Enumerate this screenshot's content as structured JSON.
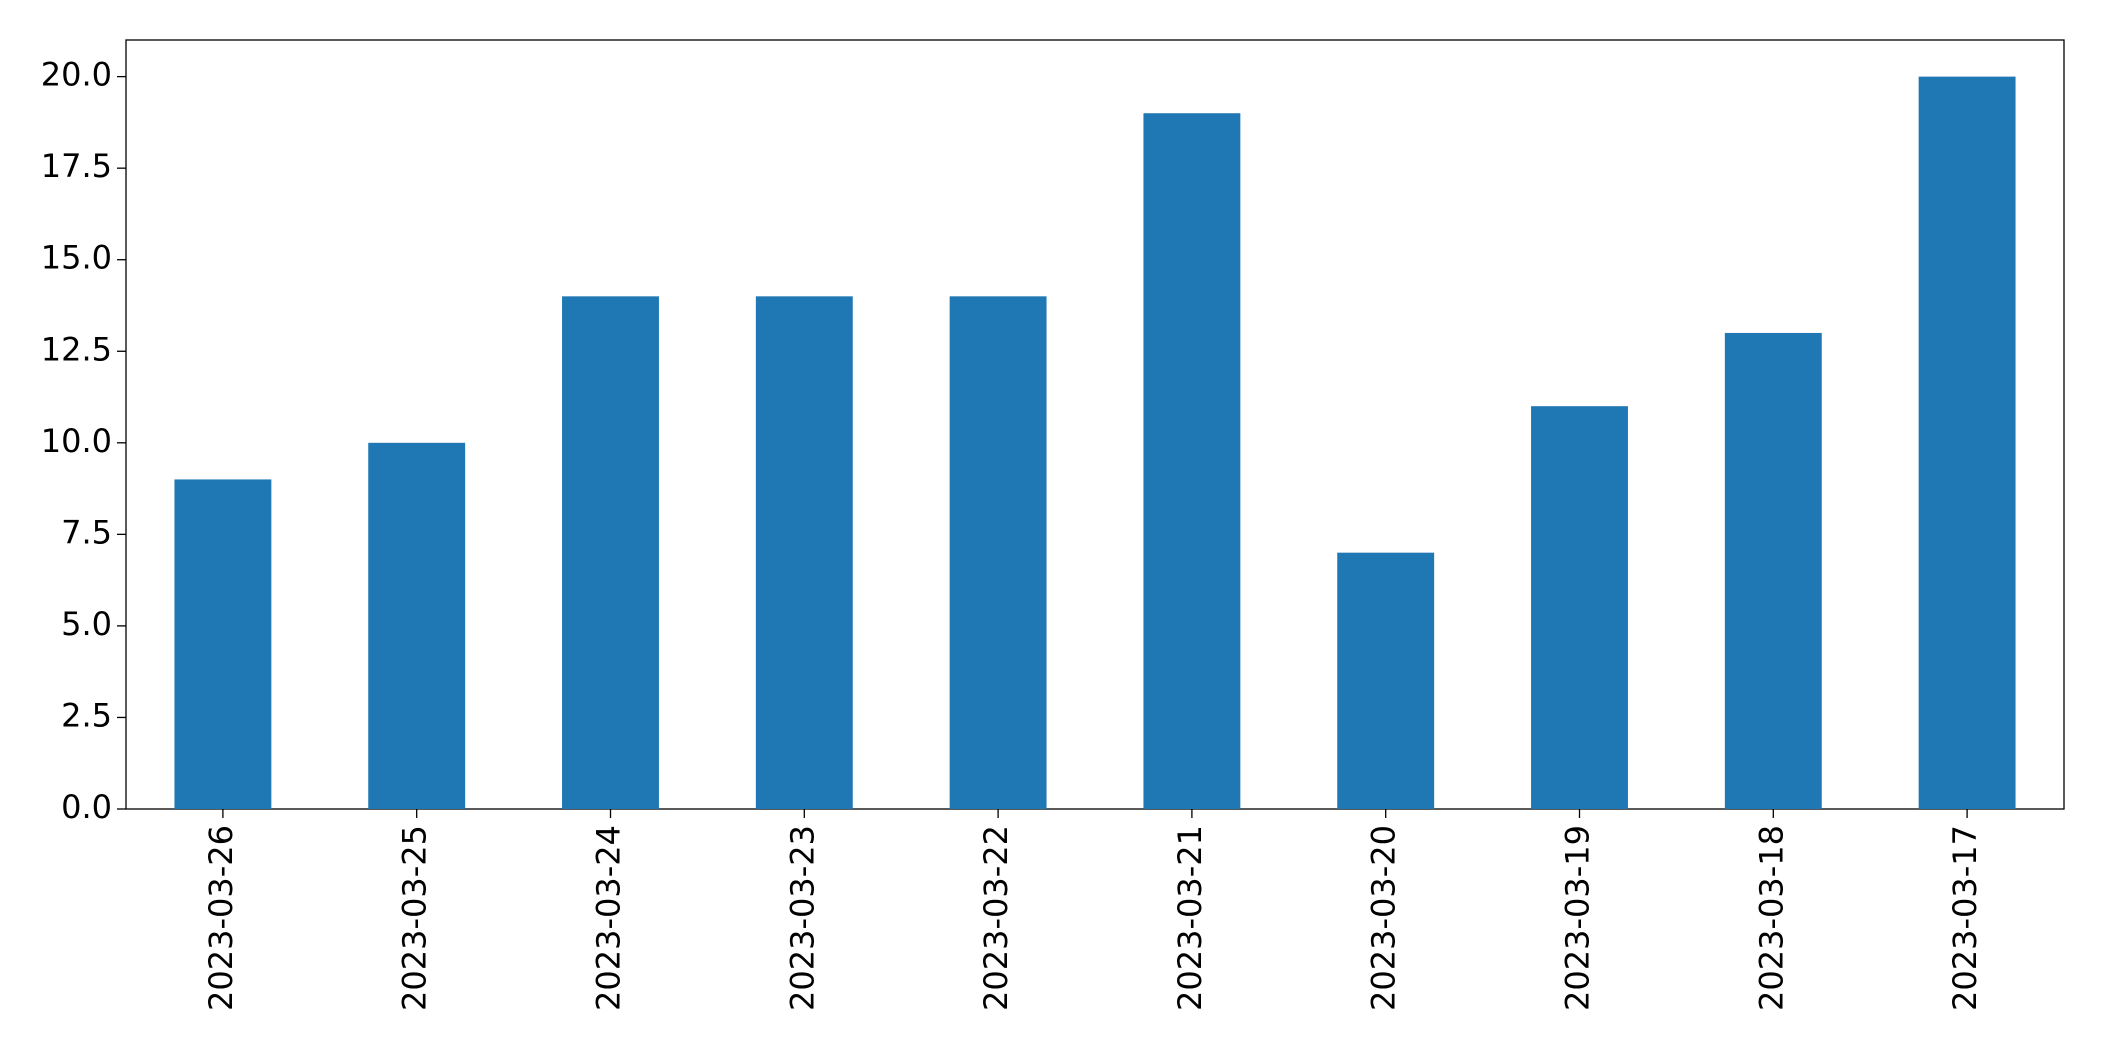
{
  "chart_data": {
    "type": "bar",
    "categories": [
      "2023-03-26",
      "2023-03-25",
      "2023-03-24",
      "2023-03-23",
      "2023-03-22",
      "2023-03-21",
      "2023-03-20",
      "2023-03-19",
      "2023-03-18",
      "2023-03-17"
    ],
    "values": [
      9,
      10,
      14,
      14,
      14,
      19,
      7,
      11,
      13,
      20
    ],
    "color": "#1f77b4",
    "ylim": [
      0,
      21
    ],
    "yticks": [
      {
        "value": 0,
        "label": "0.0"
      },
      {
        "value": 2.5,
        "label": "2.5"
      },
      {
        "value": 5,
        "label": "5.0"
      },
      {
        "value": 7.5,
        "label": "7.5"
      },
      {
        "value": 10,
        "label": "10.0"
      },
      {
        "value": 12.5,
        "label": "12.5"
      },
      {
        "value": 15,
        "label": "15.0"
      },
      {
        "value": 17.5,
        "label": "17.5"
      },
      {
        "value": 20,
        "label": "20.0"
      }
    ],
    "grid": false
  }
}
